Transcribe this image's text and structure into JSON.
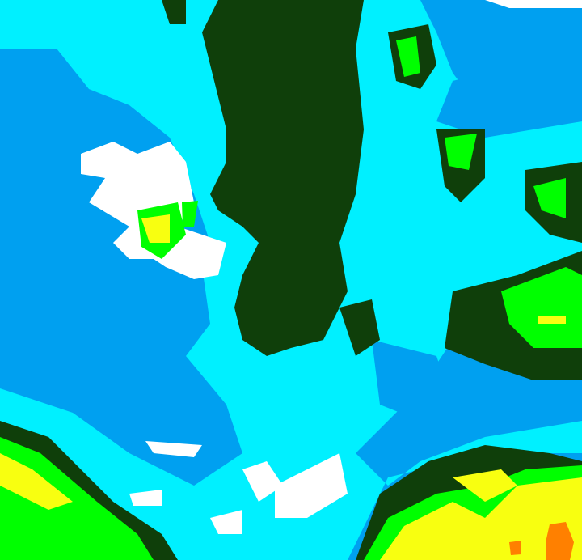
{
  "map": {
    "kind": "weather-radar-echo",
    "colors": {
      "background_blue": "#00a0f0",
      "cyan": "#00f0ff",
      "white": "#ffffff",
      "dark_green": "#0f3f0a",
      "green": "#00ff00",
      "yellow": "#f8ff10",
      "orange": "#ff8000"
    }
  }
}
